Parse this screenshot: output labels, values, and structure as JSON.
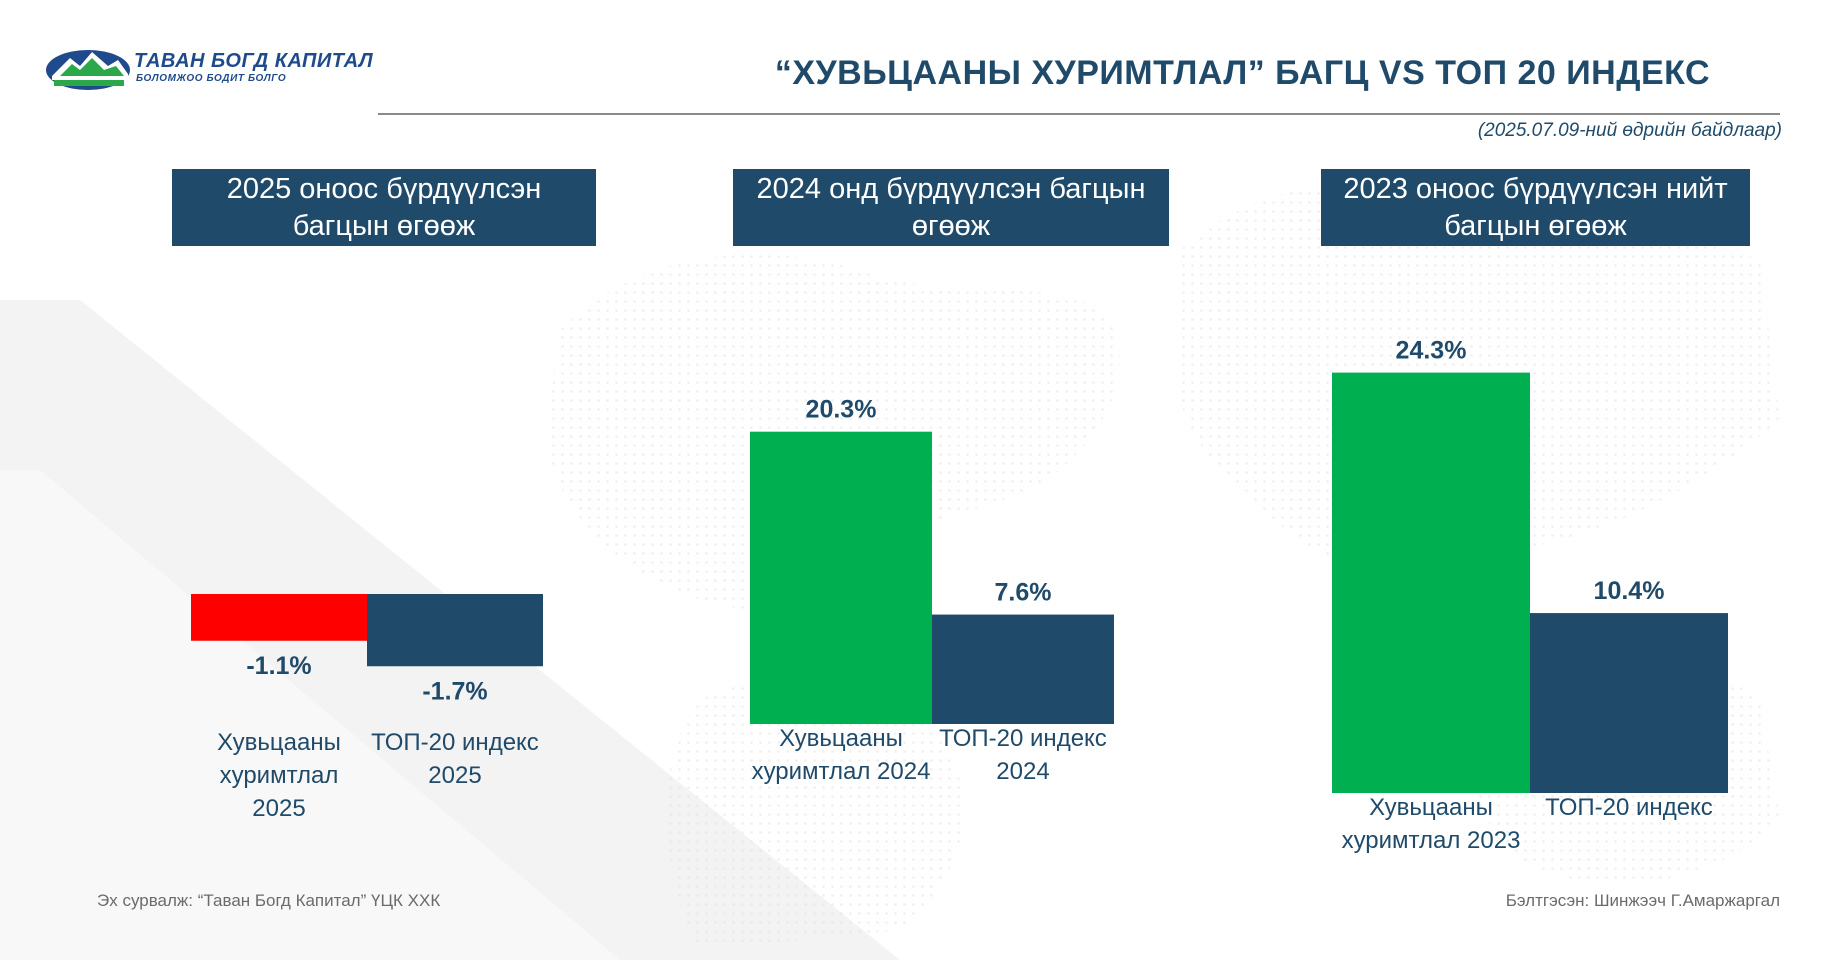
{
  "header": {
    "logo_main": "ТАВАН БОГД КАПИТАЛ",
    "logo_sub": "БОЛОМЖОО БОДИТ БОЛГО",
    "title": "“ХУВЬЦААНЫ ХУРИМТЛАЛ” БАГЦ VS ТОП 20 ИНДЕКС",
    "as_of": "(2025.07.09-ний өдрийн байдлаар)"
  },
  "panels": [
    {
      "title_line1": "2025 оноос бүрдүүлсэн",
      "title_line2": "багцын өгөөж"
    },
    {
      "title_line1": "2024 онд бүрдүүлсэн багцын",
      "title_line2": "өгөөж"
    },
    {
      "title_line1": "2023 оноос бүрдүүлсэн нийт",
      "title_line2": "багцын өгөөж"
    }
  ],
  "chart_data": [
    {
      "type": "bar",
      "categories": [
        [
          "Хувьцааны",
          "хуримтлал",
          "2025"
        ],
        [
          "ТОП-20 индекс",
          "2025"
        ]
      ],
      "values": [
        -1.1,
        -1.7
      ],
      "data_labels": [
        "-1.1%",
        "-1.7%"
      ],
      "colors": [
        "#ff0000",
        "#1f4a6a"
      ]
    },
    {
      "type": "bar",
      "categories": [
        [
          "Хувьцааны",
          "хуримтлал 2024"
        ],
        [
          "ТОП-20 индекс",
          "2024"
        ]
      ],
      "values": [
        20.3,
        7.6
      ],
      "data_labels": [
        "20.3%",
        "7.6%"
      ],
      "colors": [
        "#00b050",
        "#1f4a6a"
      ]
    },
    {
      "type": "bar",
      "categories": [
        [
          "Хувьцааны",
          "хуримтлал 2023"
        ],
        [
          "ТОП-20 индекс"
        ]
      ],
      "values": [
        24.3,
        10.4
      ],
      "data_labels": [
        "24.3%",
        "10.4%"
      ],
      "colors": [
        "#00b050",
        "#1f4a6a"
      ]
    }
  ],
  "footer": {
    "source": "Эх сурвалж: “Таван Богд Капитал” ҮЦК ХХК",
    "author": "Бэлтгэсэн: Шинжээч Г.Амаржаргал"
  },
  "theme": {
    "navy": "#1f4a6a",
    "green": "#00b050",
    "red": "#ff0000"
  }
}
